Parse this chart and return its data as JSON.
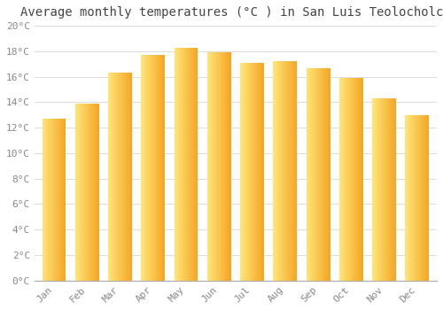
{
  "title": "Average monthly temperatures (°C ) in San Luis Teolocholco",
  "months": [
    "Jan",
    "Feb",
    "Mar",
    "Apr",
    "May",
    "Jun",
    "Jul",
    "Aug",
    "Sep",
    "Oct",
    "Nov",
    "Dec"
  ],
  "values": [
    12.7,
    13.9,
    16.3,
    17.7,
    18.3,
    17.9,
    17.1,
    17.2,
    16.7,
    15.9,
    14.3,
    13.0
  ],
  "bar_color_main": "#F5A623",
  "bar_color_light": "#FDE68A",
  "background_color": "#FFFFFF",
  "grid_color": "#DDDDDD",
  "title_color": "#444444",
  "tick_color": "#888888",
  "spine_color": "#AAAAAA",
  "ylim": [
    0,
    20
  ],
  "ytick_step": 2,
  "title_fontsize": 10,
  "tick_fontsize": 8,
  "font_family": "monospace"
}
